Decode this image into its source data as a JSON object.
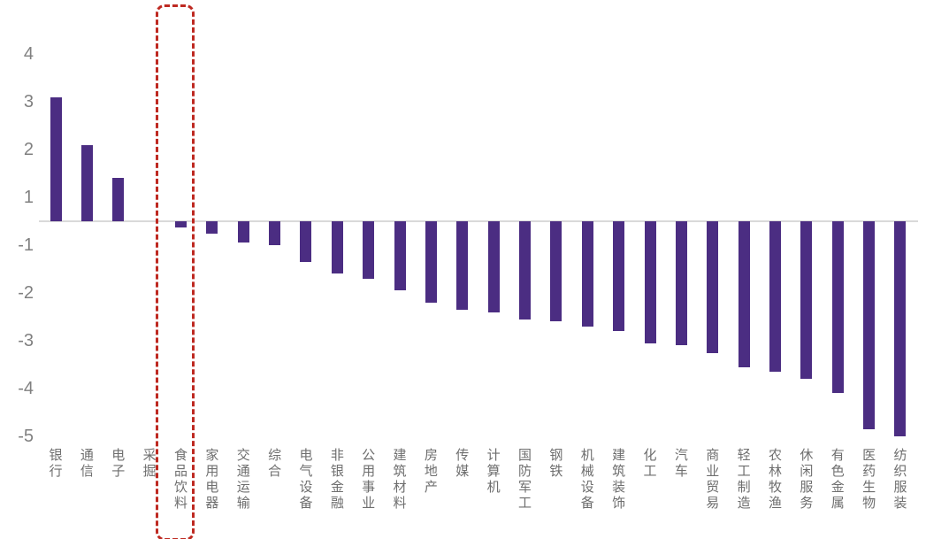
{
  "chart_data": {
    "type": "bar",
    "title": "",
    "xlabel": "",
    "ylabel": "",
    "legend": "none",
    "grid": "off",
    "categories": [
      "银行",
      "通信",
      "电子",
      "采掘",
      "食品饮料",
      "家用电器",
      "交通运输",
      "综合",
      "电气设备",
      "非银金融",
      "公用事业",
      "建筑材料",
      "房地产",
      "传媒",
      "计算机",
      "国防军工",
      "钢铁",
      "机械设备",
      "建筑装饰",
      "化工",
      "汽车",
      "商业贸易",
      "轻工制造",
      "农林牧渔",
      "休闲服务",
      "有色金属",
      "医药生物",
      "纺织服装"
    ],
    "values": [
      3.1,
      2.1,
      1.4,
      0.0,
      -0.25,
      -0.5,
      -0.9,
      -1.0,
      -1.35,
      -1.6,
      -1.7,
      -1.95,
      -2.2,
      -2.35,
      -2.4,
      -2.55,
      -2.6,
      -2.7,
      -2.8,
      -3.05,
      -3.1,
      -3.25,
      -3.55,
      -3.65,
      -3.8,
      -4.1,
      -4.85,
      -5.0
    ],
    "y_axis": {
      "tick_labels": [
        "4",
        "3",
        "2",
        "1",
        "-1",
        "-2",
        "-3",
        "-4",
        "-5"
      ],
      "tick_values": [
        4,
        3,
        2,
        1,
        -1,
        -2,
        -3,
        -4,
        -5
      ],
      "note": "broken axis: no 0 label, gap between 1 and -1 equals one tick spacing, zero baseline drawn midway"
    },
    "highlighted_category": "食品饮料",
    "colors": {
      "bar": "#4B2D82",
      "highlight_box": "#BE2921",
      "baseline": "#D9D9D9",
      "tick_text": "#808080",
      "category_text": "#6E6E6E",
      "background": "#FFFFFF"
    }
  }
}
